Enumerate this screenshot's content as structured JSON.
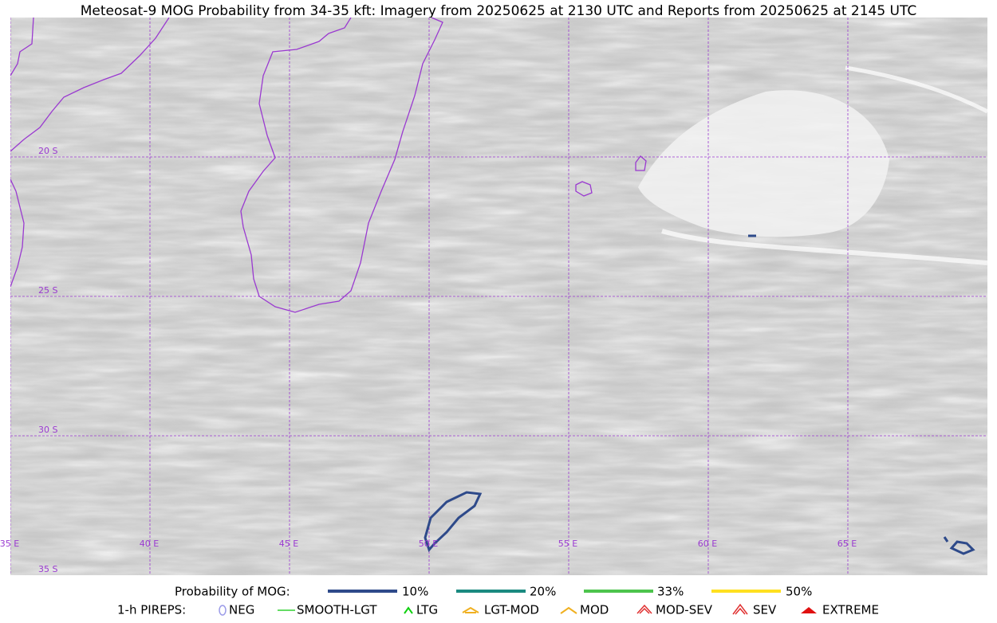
{
  "header": {
    "title": "Meteosat-9 MOG Probability from 34-35 kft: Imagery from 20250625 at 2130 UTC and Reports from 20250625 at 2145 UTC"
  },
  "map": {
    "lat_labels": [
      "20 S",
      "25 S",
      "30 S",
      "35 S"
    ],
    "lon_labels": [
      "35 E",
      "40 E",
      "45 E",
      "50 E",
      "55 E",
      "60 E",
      "65 E"
    ]
  },
  "legend": {
    "probability_title": "Probability of MOG:",
    "probability_items": [
      "10%",
      "20%",
      "33%",
      "50%"
    ],
    "pireps_title": "1-h PIREPS:",
    "pireps_items": [
      "NEG",
      "SMOOTH-LGT",
      "LTG",
      "LGT-MOD",
      "MOD",
      "MOD-SEV",
      "SEV",
      "EXTREME"
    ]
  }
}
